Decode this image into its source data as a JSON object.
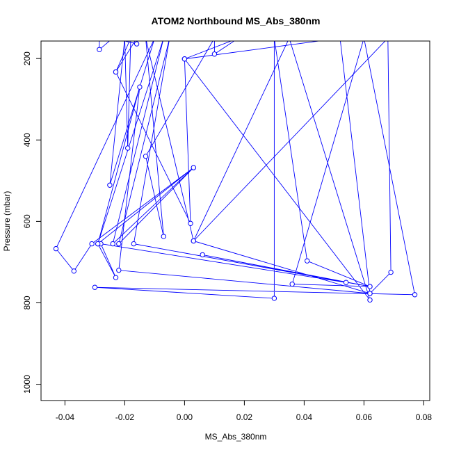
{
  "chart_data": {
    "type": "line",
    "title": "ATOM2 Northbound MS_Abs_380nm",
    "xlabel": "MS_Abs_380nm",
    "ylabel": "Pressure (mbar)",
    "xlim": [
      -0.048,
      0.082
    ],
    "ylim": [
      1040,
      157
    ],
    "y_axis_inverted": true,
    "grid": false,
    "x_ticks": [
      -0.04,
      -0.02,
      0.0,
      0.02,
      0.04,
      0.06,
      0.08
    ],
    "x_tick_labels": [
      "-0.04",
      "-0.02",
      "0.00",
      "0.02",
      "0.04",
      "0.06",
      "0.08"
    ],
    "y_ticks": [
      200,
      400,
      600,
      800,
      1000
    ],
    "y_tick_labels": [
      "200",
      "400",
      "600",
      "800",
      "1000"
    ],
    "line_color": "#0000ff",
    "marker": "open-circle",
    "series": [
      {
        "points": [
          {
            "x": -0.0285,
            "y": 150
          },
          {
            "x": -0.0285,
            "y": 178
          },
          {
            "x": -0.024,
            "y": 150
          },
          {
            "x": -0.016,
            "y": 164
          },
          {
            "x": -0.016,
            "y": 150
          },
          {
            "x": -0.023,
            "y": 233
          },
          {
            "x": -0.018,
            "y": 150
          },
          {
            "x": -0.019,
            "y": 420
          },
          {
            "x": -0.02,
            "y": 150
          },
          {
            "x": -0.025,
            "y": 511
          },
          {
            "x": -0.01,
            "y": 150
          },
          {
            "x": -0.043,
            "y": 667
          },
          {
            "x": -0.037,
            "y": 722
          },
          {
            "x": -0.031,
            "y": 655
          },
          {
            "x": 0.003,
            "y": 468
          },
          {
            "x": -0.029,
            "y": 655
          },
          {
            "x": -0.007,
            "y": 150
          },
          {
            "x": -0.024,
            "y": 655
          },
          {
            "x": 0.003,
            "y": 468
          },
          {
            "x": -0.022,
            "y": 655
          },
          {
            "x": -0.005,
            "y": 150
          },
          {
            "x": -0.017,
            "y": 655
          },
          {
            "x": 0.062,
            "y": 760
          },
          {
            "x": 0.036,
            "y": 754
          },
          {
            "x": 0.06,
            "y": 150
          },
          {
            "x": 0.077,
            "y": 780
          },
          {
            "x": -0.03,
            "y": 762
          },
          {
            "x": 0.03,
            "y": 789
          },
          {
            "x": 0.03,
            "y": 150
          },
          {
            "x": 0.041,
            "y": 697
          },
          {
            "x": 0.062,
            "y": 760
          },
          {
            "x": 0.006,
            "y": 682
          },
          {
            "x": 0.054,
            "y": 750
          },
          {
            "x": -0.028,
            "y": 655
          },
          {
            "x": -0.023,
            "y": 738
          },
          {
            "x": -0.029,
            "y": 655
          },
          {
            "x": -0.015,
            "y": 270
          },
          {
            "x": -0.022,
            "y": 720
          },
          {
            "x": 0.062,
            "y": 777
          },
          {
            "x": 0.069,
            "y": 725
          },
          {
            "x": 0.068,
            "y": 150
          },
          {
            "x": 0.003,
            "y": 648
          },
          {
            "x": 0.062,
            "y": 777
          },
          {
            "x": 0.052,
            "y": 150
          },
          {
            "x": 0.0,
            "y": 201
          },
          {
            "x": 0.062,
            "y": 793
          },
          {
            "x": 0.035,
            "y": 150
          },
          {
            "x": 0.003,
            "y": 648
          },
          {
            "x": -0.013,
            "y": 150
          },
          {
            "x": -0.007,
            "y": 637
          },
          {
            "x": -0.013,
            "y": 440
          },
          {
            "x": 0.01,
            "y": 150
          },
          {
            "x": 0.01,
            "y": 189
          },
          {
            "x": 0.018,
            "y": 150
          },
          {
            "x": 0.0,
            "y": 201
          },
          {
            "x": 0.002,
            "y": 605
          },
          {
            "x": -0.023,
            "y": 233
          }
        ]
      }
    ]
  }
}
